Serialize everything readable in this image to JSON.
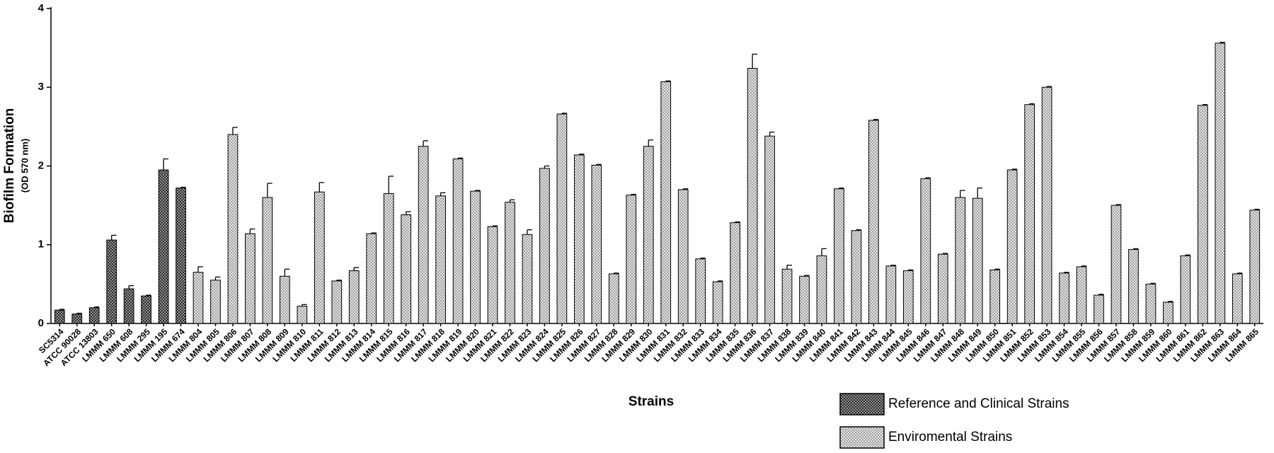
{
  "chart_data": {
    "type": "bar",
    "y_label": "Biofilm Formation",
    "y_label_unit": "(OD 570 nm)",
    "x_label": "Strains",
    "ylim": [
      0,
      4
    ],
    "yticks": [
      0,
      1,
      2,
      3,
      4
    ],
    "grid": false,
    "legend_position": "bottom-right",
    "categories": [
      "SC5314",
      "ATCC 90028",
      "ATCC 13803",
      "LMMM 650",
      "LMMM 608",
      "LMMM 295",
      "LMMM 195",
      "LMMM 674",
      "LMMM 804",
      "LMMM 805",
      "LMMM 806",
      "LMMM 807",
      "LMMM 808",
      "LMMM 809",
      "LMMM 810",
      "LMMM 811",
      "LMMM 812",
      "LMMM 813",
      "LMMM 814",
      "LMMM 815",
      "LMMM 816",
      "LMMM 817",
      "LMMM 818",
      "LMMM 819",
      "LMMM 820",
      "LMMM 821",
      "LMMM 822",
      "LMMM 823",
      "LMMM 824",
      "LMMM 825",
      "LMMM 826",
      "LMMM 827",
      "LMMM 828",
      "LMMM 829",
      "LMMM 830",
      "LMMM 831",
      "LMMM 832",
      "LMMM 833",
      "LMMM 834",
      "LMMM 835",
      "LMMM 836",
      "LMMM 837",
      "LMMM 838",
      "LMMM 839",
      "LMMM 840",
      "LMMM 841",
      "LMMM 842",
      "LMMM 843",
      "LMMM 844",
      "LMMM 845",
      "LMMM 846",
      "LMMM 847",
      "LMMM 848",
      "LMMM 849",
      "LMMM 850",
      "LMMM 851",
      "LMMM 852",
      "LMMM 853",
      "LMMM 854",
      "LMMM 855",
      "LMMM 856",
      "LMMM 857",
      "LMMM 858",
      "LMMM 859",
      "LMMM 860",
      "LMMM 861",
      "LMMM 862",
      "LMMM 863",
      "LMMM 864",
      "LMMM 865"
    ],
    "series": [
      {
        "name": "Reference and Clinical Strains",
        "color": "#3a3a3a",
        "values": [
          0.17,
          0.12,
          0.2,
          1.06,
          0.44,
          0.35,
          1.95,
          1.72,
          null,
          null,
          null,
          null,
          null,
          null,
          null,
          null,
          null,
          null,
          null,
          null,
          null,
          null,
          null,
          null,
          null,
          null,
          null,
          null,
          null,
          null,
          null,
          null,
          null,
          null,
          null,
          null,
          null,
          null,
          null,
          null,
          null,
          null,
          null,
          null,
          null,
          null,
          null,
          null,
          null,
          null,
          null,
          null,
          null,
          null,
          null,
          null,
          null,
          null,
          null,
          null,
          null,
          null,
          null,
          null,
          null,
          null,
          null,
          null,
          null,
          null
        ],
        "errors": [
          0.01,
          0.01,
          0.01,
          0.06,
          0.04,
          0.01,
          0.14,
          0.01,
          null,
          null,
          null,
          null,
          null,
          null,
          null,
          null,
          null,
          null,
          null,
          null,
          null,
          null,
          null,
          null,
          null,
          null,
          null,
          null,
          null,
          null,
          null,
          null,
          null,
          null,
          null,
          null,
          null,
          null,
          null,
          null,
          null,
          null,
          null,
          null,
          null,
          null,
          null,
          null,
          null,
          null,
          null,
          null,
          null,
          null,
          null,
          null,
          null,
          null,
          null,
          null,
          null,
          null,
          null,
          null,
          null,
          null,
          null,
          null,
          null,
          null
        ]
      },
      {
        "name": "Enviromental Strains",
        "color": "#d4d4d4",
        "values": [
          null,
          null,
          null,
          null,
          null,
          null,
          null,
          null,
          0.65,
          0.55,
          2.4,
          1.14,
          1.6,
          0.6,
          0.22,
          1.67,
          0.54,
          0.67,
          1.14,
          1.65,
          1.38,
          2.25,
          1.62,
          2.09,
          1.68,
          1.23,
          1.54,
          1.13,
          1.97,
          2.66,
          2.14,
          2.01,
          0.63,
          1.63,
          2.25,
          3.07,
          1.7,
          0.82,
          0.53,
          1.28,
          3.24,
          2.38,
          0.69,
          0.6,
          0.86,
          1.71,
          1.18,
          2.58,
          0.73,
          0.67,
          1.84,
          0.88,
          1.6,
          1.59,
          0.68,
          1.95,
          2.78,
          3.0,
          0.64,
          0.72,
          0.36,
          1.5,
          0.94,
          0.5,
          0.27,
          0.86,
          2.77,
          3.56,
          0.63,
          1.44
        ],
        "errors": [
          null,
          null,
          null,
          null,
          null,
          null,
          null,
          null,
          0.07,
          0.04,
          0.09,
          0.06,
          0.18,
          0.09,
          0.02,
          0.12,
          0.01,
          0.04,
          0.01,
          0.22,
          0.04,
          0.07,
          0.04,
          0.01,
          0.01,
          0.01,
          0.03,
          0.06,
          0.03,
          0.01,
          0.01,
          0.01,
          0.01,
          0.01,
          0.08,
          0.01,
          0.01,
          0.01,
          0.01,
          0.01,
          0.18,
          0.05,
          0.05,
          0.01,
          0.09,
          0.01,
          0.01,
          0.01,
          0.01,
          0.01,
          0.01,
          0.01,
          0.09,
          0.13,
          0.01,
          0.01,
          0.01,
          0.01,
          0.01,
          0.01,
          0.01,
          0.01,
          0.01,
          0.01,
          0.01,
          0.01,
          0.01,
          0.01,
          0.01,
          0.01
        ]
      }
    ]
  }
}
